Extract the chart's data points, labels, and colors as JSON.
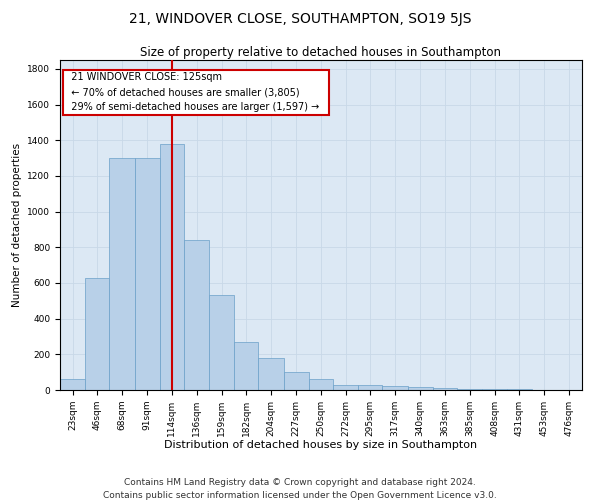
{
  "title": "21, WINDOVER CLOSE, SOUTHAMPTON, SO19 5JS",
  "subtitle": "Size of property relative to detached houses in Southampton",
  "xlabel": "Distribution of detached houses by size in Southampton",
  "ylabel": "Number of detached properties",
  "footnote1": "Contains HM Land Registry data © Crown copyright and database right 2024.",
  "footnote2": "Contains public sector information licensed under the Open Government Licence v3.0.",
  "annotation_title": "21 WINDOVER CLOSE: 125sqm",
  "annotation_line1": "← 70% of detached houses are smaller (3,805)",
  "annotation_line2": "29% of semi-detached houses are larger (1,597) →",
  "property_sqm": 125,
  "bar_left_edges": [
    23,
    46,
    68,
    91,
    114,
    136,
    159,
    182,
    204,
    227,
    250,
    272,
    295,
    317,
    340,
    363,
    385,
    408,
    431,
    453,
    476
  ],
  "bar_widths": [
    23,
    22,
    23,
    23,
    22,
    23,
    23,
    22,
    23,
    23,
    22,
    23,
    22,
    23,
    23,
    22,
    23,
    23,
    22,
    23,
    23
  ],
  "bar_heights": [
    60,
    630,
    1300,
    1300,
    1380,
    840,
    530,
    270,
    180,
    100,
    60,
    30,
    30,
    25,
    15,
    10,
    8,
    5,
    3,
    2,
    2
  ],
  "bar_color": "#b8d0e8",
  "bar_edge_color": "#6a9fc8",
  "vline_x": 125,
  "vline_color": "#cc0000",
  "vline_linewidth": 1.5,
  "ylim": [
    0,
    1850
  ],
  "yticks": [
    0,
    200,
    400,
    600,
    800,
    1000,
    1200,
    1400,
    1600,
    1800
  ],
  "grid_color": "#c8d8e8",
  "bg_color": "#dce8f4",
  "annotation_box_color": "#ffffff",
  "annotation_border_color": "#cc0000",
  "title_fontsize": 10,
  "subtitle_fontsize": 8.5,
  "xlabel_fontsize": 8,
  "ylabel_fontsize": 7.5,
  "tick_fontsize": 6.5,
  "annotation_fontsize": 7,
  "footnote_fontsize": 6.5
}
